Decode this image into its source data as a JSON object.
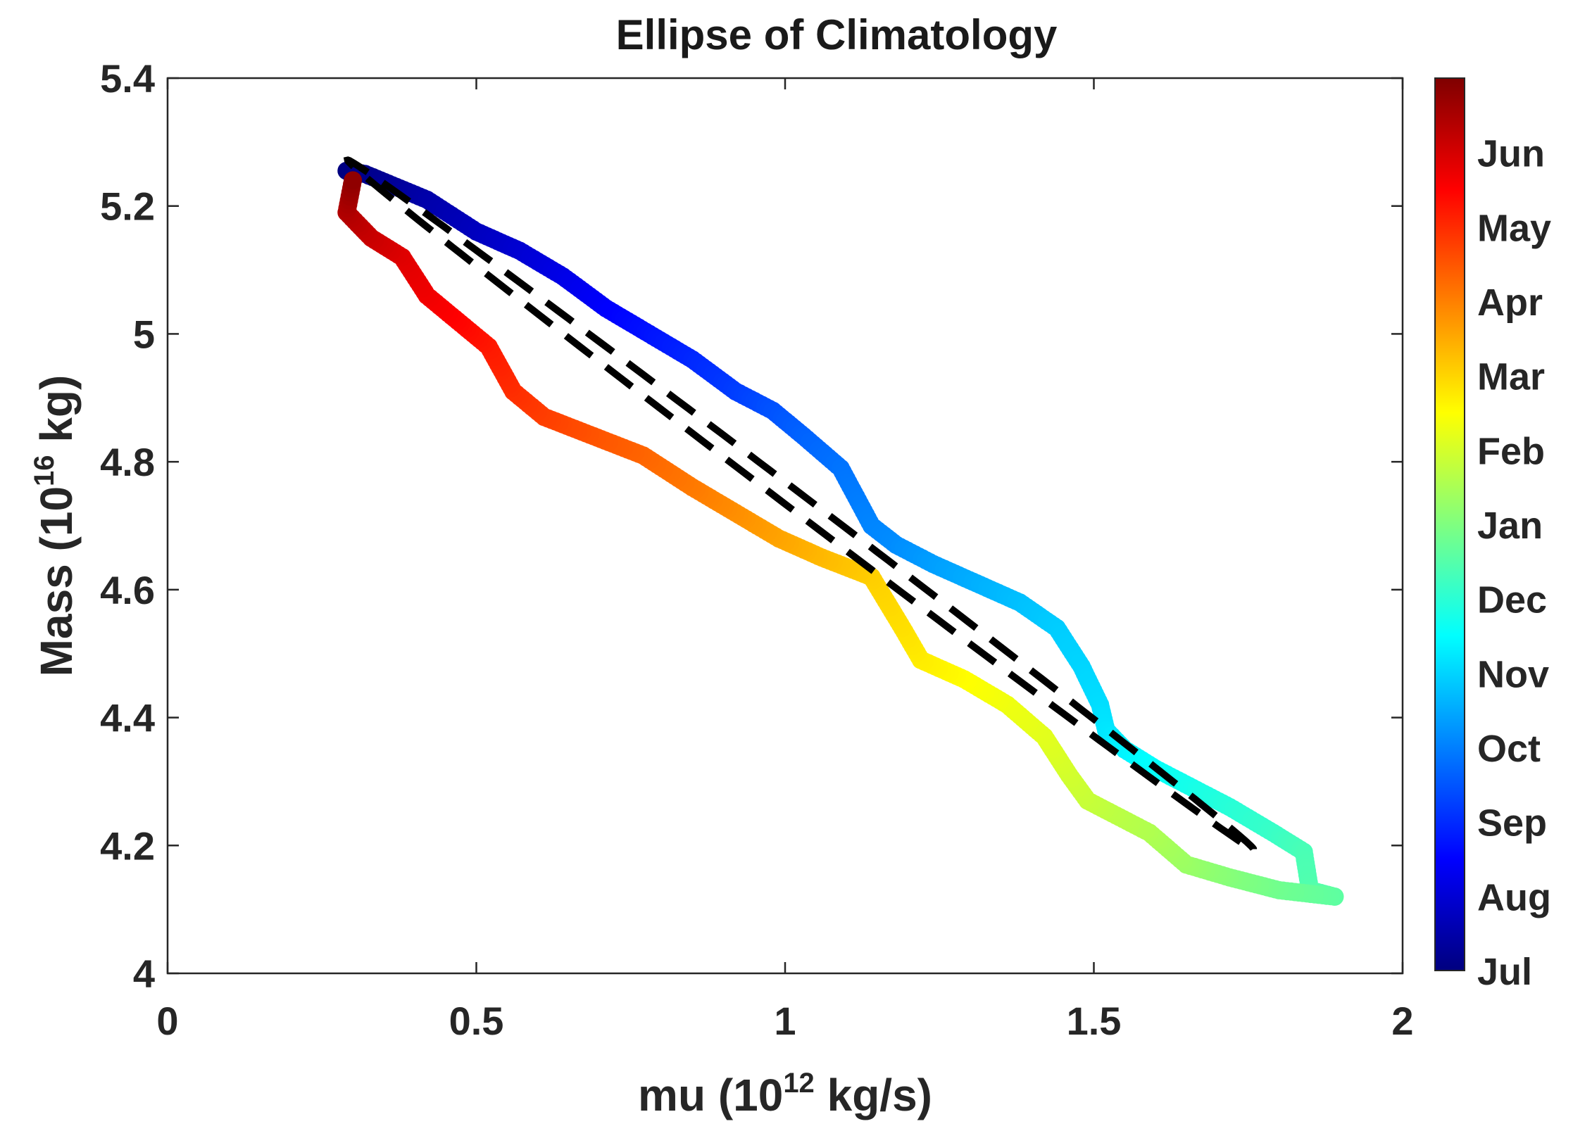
{
  "chart_data": {
    "type": "scatter",
    "title": "Ellipse of Climatology",
    "xlabel": {
      "prefix": "mu (10",
      "sup": "12",
      "suffix": " kg/s)"
    },
    "ylabel": {
      "prefix": "Mass (10",
      "sup": "16",
      "suffix": " kg)"
    },
    "xlim": [
      0,
      2
    ],
    "ylim": [
      4,
      5.4
    ],
    "xticks": [
      0,
      0.5,
      1,
      1.5,
      2
    ],
    "xtick_labels": [
      "0",
      "0.5",
      "1",
      "1.5",
      "2"
    ],
    "yticks": [
      4,
      4.2,
      4.4,
      4.6,
      4.8,
      5,
      5.2,
      5.4
    ],
    "ytick_labels": [
      "4",
      "4.2",
      "4.4",
      "4.6",
      "4.8",
      "5",
      "5.2",
      "5.4"
    ],
    "grid": false,
    "series": [
      {
        "name": "climatology",
        "color_by": "time_of_year",
        "x": [
          0.29,
          0.32,
          0.37,
          0.42,
          0.5,
          0.57,
          0.64,
          0.71,
          0.78,
          0.85,
          0.92,
          0.98,
          1.03,
          1.09,
          1.14,
          1.18,
          1.24,
          1.31,
          1.38,
          1.44,
          1.48,
          1.51,
          1.52,
          1.55,
          1.6,
          1.66,
          1.72,
          1.79,
          1.84,
          1.85,
          1.89,
          1.8,
          1.72,
          1.65,
          1.59,
          1.53,
          1.49,
          1.46,
          1.44,
          1.42,
          1.36,
          1.29,
          1.22,
          1.19,
          1.14,
          1.06,
          0.99,
          0.92,
          0.85,
          0.77,
          0.69,
          0.61,
          0.56,
          0.52,
          0.47,
          0.42,
          0.38,
          0.33,
          0.29,
          0.3
        ],
        "y": [
          5.255,
          5.25,
          5.23,
          5.21,
          5.16,
          5.13,
          5.09,
          5.04,
          5.0,
          4.96,
          4.91,
          4.88,
          4.84,
          4.79,
          4.7,
          4.67,
          4.64,
          4.61,
          4.58,
          4.54,
          4.48,
          4.42,
          4.38,
          4.35,
          4.32,
          4.29,
          4.26,
          4.22,
          4.19,
          4.13,
          4.12,
          4.13,
          4.15,
          4.17,
          4.22,
          4.25,
          4.27,
          4.31,
          4.34,
          4.37,
          4.42,
          4.46,
          4.49,
          4.54,
          4.62,
          4.65,
          4.68,
          4.72,
          4.76,
          4.81,
          4.84,
          4.87,
          4.91,
          4.98,
          5.02,
          5.06,
          5.12,
          5.15,
          5.19,
          5.24
        ],
        "month_index": [
          0.0,
          0.12,
          0.3,
          0.48,
          0.72,
          0.95,
          1.2,
          1.45,
          1.7,
          1.95,
          2.2,
          2.45,
          2.65,
          2.85,
          3.05,
          3.15,
          3.35,
          3.55,
          3.75,
          3.9,
          4.0,
          4.1,
          4.2,
          4.35,
          4.55,
          4.75,
          4.95,
          5.15,
          5.35,
          5.45,
          5.6,
          5.8,
          6.05,
          6.3,
          6.55,
          6.7,
          6.82,
          6.95,
          7.05,
          7.15,
          7.3,
          7.5,
          7.7,
          7.85,
          8.05,
          8.3,
          8.55,
          8.8,
          9.05,
          9.3,
          9.5,
          9.75,
          9.95,
          10.2,
          10.45,
          10.65,
          10.85,
          11.1,
          11.4,
          11.8
        ]
      },
      {
        "name": "fitted ellipse",
        "style": "dashed",
        "color": "#000000",
        "center": [
          1.025,
          4.733
        ],
        "semi_major": 0.91,
        "semi_minor": 0.014,
        "angle_deg": -36.3
      }
    ],
    "colorbar": {
      "colormap": "jet",
      "labels": [
        "Jul",
        "Aug",
        "Sep",
        "Oct",
        "Nov",
        "Dec",
        "Jan",
        "Feb",
        "Mar",
        "Apr",
        "May",
        "Jun"
      ],
      "range": [
        0,
        12
      ]
    }
  },
  "colors": {
    "axis": "#262626",
    "ellipse": "#000000",
    "background": "#ffffff"
  }
}
